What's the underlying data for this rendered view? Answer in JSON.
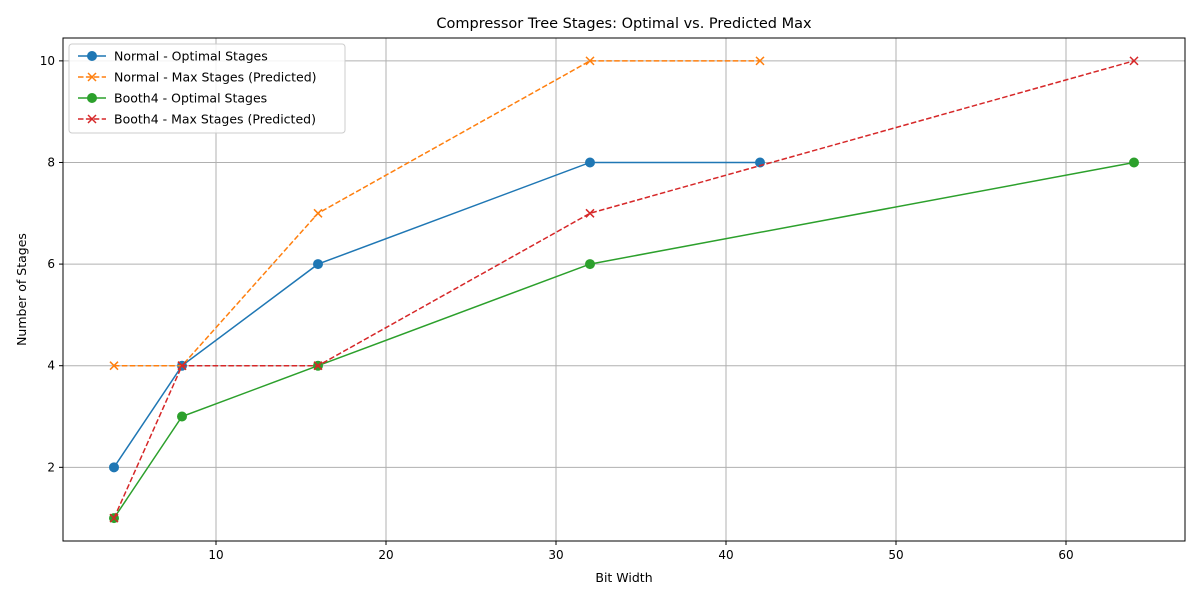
{
  "chart_data": {
    "type": "line",
    "title": "Compressor Tree Stages: Optimal vs. Predicted Max",
    "xlabel": "Bit Width",
    "ylabel": "Number of Stages",
    "xlim": [
      1.0,
      67.0
    ],
    "ylim": [
      0.55,
      10.45
    ],
    "xticks": [
      10,
      20,
      30,
      40,
      50,
      60
    ],
    "yticks": [
      2,
      4,
      6,
      8,
      10
    ],
    "grid": true,
    "legend_position": "top-left",
    "series": [
      {
        "name": "Normal - Optimal Stages",
        "color": "#1f77b4",
        "line_style": "solid",
        "marker": "circle",
        "x": [
          4,
          8,
          16,
          32,
          42
        ],
        "y": [
          2,
          4,
          6,
          8,
          8
        ]
      },
      {
        "name": "Normal - Max Stages (Predicted)",
        "color": "#ff7f0e",
        "line_style": "dashed",
        "marker": "x",
        "x": [
          4,
          8,
          16,
          32,
          42
        ],
        "y": [
          4,
          4,
          7,
          10,
          10
        ]
      },
      {
        "name": "Booth4 - Optimal Stages",
        "color": "#2ca02c",
        "line_style": "solid",
        "marker": "circle",
        "x": [
          4,
          8,
          16,
          32,
          64
        ],
        "y": [
          1,
          3,
          4,
          6,
          8
        ]
      },
      {
        "name": "Booth4 - Max Stages (Predicted)",
        "color": "#d62728",
        "line_style": "dashed",
        "marker": "x",
        "x": [
          4,
          8,
          16,
          32,
          64
        ],
        "y": [
          1,
          4,
          4,
          7,
          10
        ]
      }
    ]
  }
}
